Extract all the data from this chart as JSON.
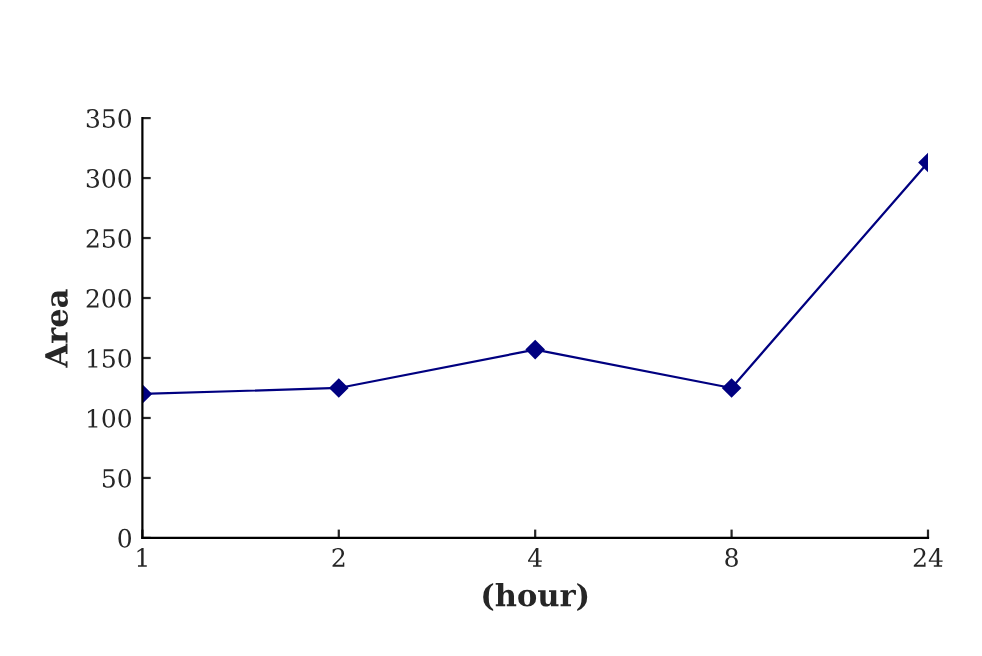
{
  "chart_data": {
    "type": "line",
    "xlabel": "(hour)",
    "ylabel": "Area",
    "categories": [
      "1",
      "2",
      "4",
      "8",
      "24"
    ],
    "series": [
      {
        "color": "#000080",
        "values": [
          120,
          125,
          157,
          125,
          313
        ]
      }
    ],
    "ylim": [
      0,
      350
    ],
    "yticks": [
      0,
      50,
      100,
      150,
      200,
      250,
      300,
      350
    ],
    "grid": false,
    "legend": false,
    "marker": "diamond",
    "line_style": "solid"
  }
}
